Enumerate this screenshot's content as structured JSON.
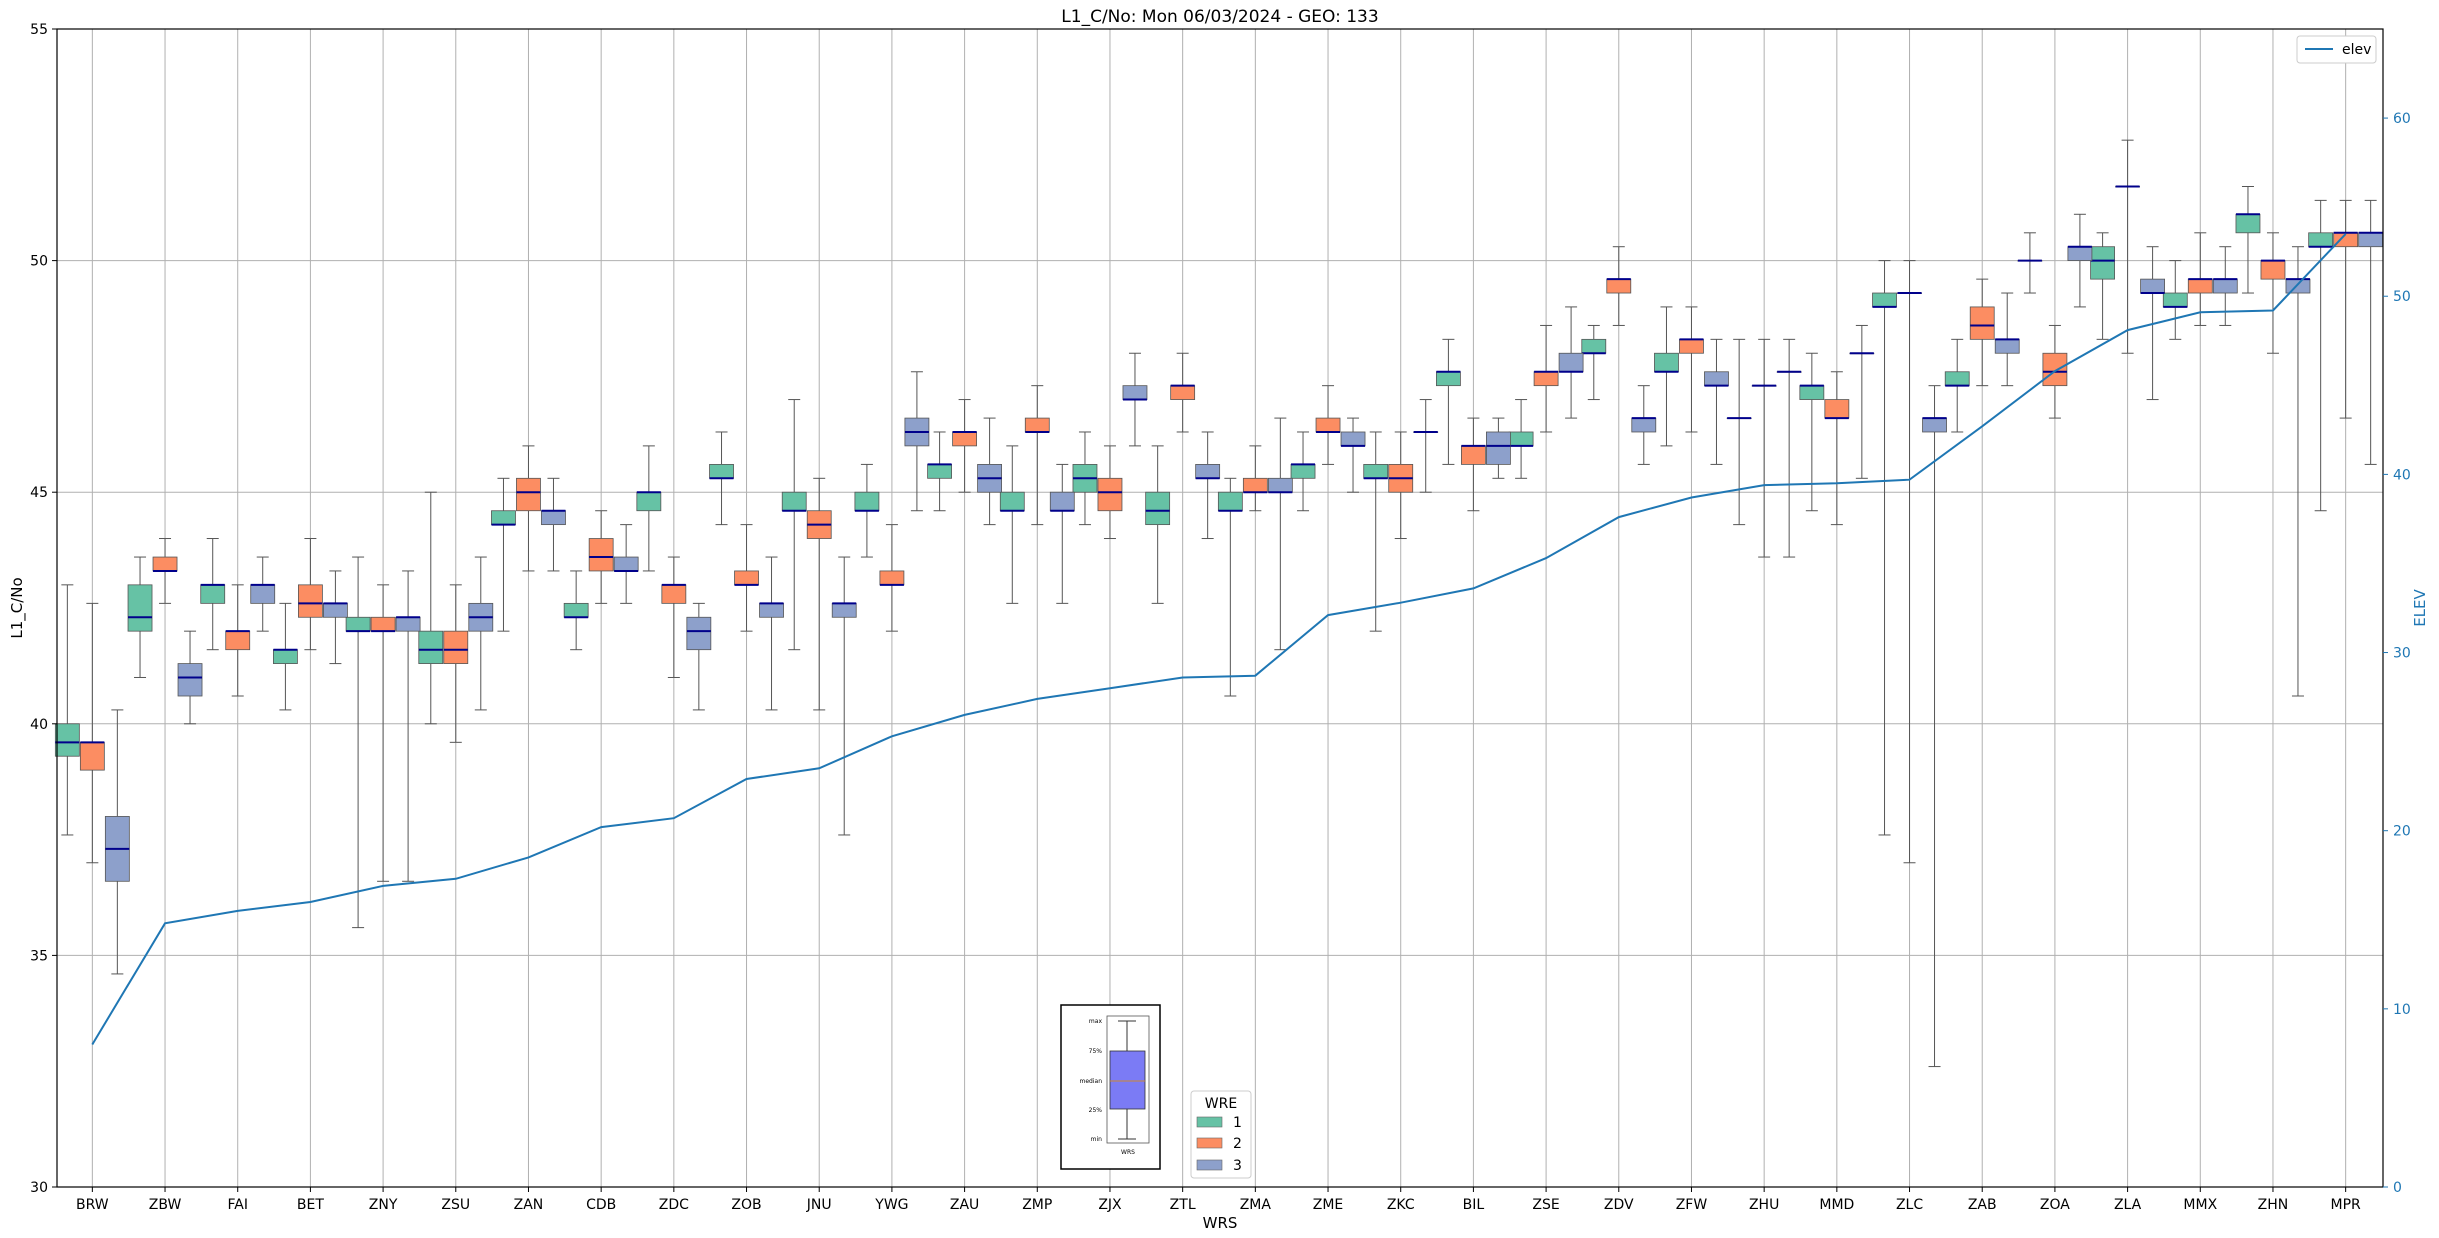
{
  "chart_data": {
    "type": "box",
    "title": "L1_C/No: Mon 06/03/2024 - GEO: 133",
    "xlabel": "WRS",
    "ylabel": "L1_C/No",
    "ylabel_right": "ELEV",
    "ylim": [
      30,
      55
    ],
    "ylim_right": [
      0,
      65
    ],
    "yticks": [
      30,
      35,
      40,
      45,
      50,
      55
    ],
    "yticks_right": [
      0,
      10,
      20,
      30,
      40,
      50,
      60
    ],
    "grid": true,
    "categories": [
      "BRW",
      "ZBW",
      "FAI",
      "BET",
      "ZNY",
      "ZSU",
      "ZAN",
      "CDB",
      "ZDC",
      "ZOB",
      "JNU",
      "YWG",
      "ZAU",
      "ZMP",
      "ZJX",
      "ZTL",
      "ZMA",
      "ZME",
      "ZKC",
      "BIL",
      "ZSE",
      "ZDV",
      "ZFW",
      "ZHU",
      "MMD",
      "ZLC",
      "ZAB",
      "ZOA",
      "ZLA",
      "MMX",
      "ZHN",
      "MPR"
    ],
    "boxes": [
      {
        "group": "1",
        "boxes": [
          [
            37.6,
            39.3,
            39.6,
            40.0,
            43.0
          ],
          [
            41.0,
            42.0,
            42.3,
            43.0,
            43.6
          ],
          [
            41.6,
            42.6,
            43.0,
            43.0,
            44.0
          ],
          [
            40.3,
            41.3,
            41.6,
            41.6,
            42.6
          ],
          [
            35.6,
            42.0,
            42.0,
            42.3,
            43.6
          ],
          [
            40.0,
            41.3,
            41.6,
            42.0,
            45.0
          ],
          [
            42.0,
            44.3,
            44.3,
            44.6,
            45.3
          ],
          [
            41.6,
            42.3,
            42.3,
            42.6,
            43.3
          ],
          [
            43.3,
            44.6,
            45.0,
            45.0,
            46.0
          ],
          [
            44.3,
            45.3,
            45.3,
            45.6,
            46.3
          ],
          [
            41.6,
            44.6,
            44.6,
            45.0,
            47.0
          ],
          [
            43.6,
            44.6,
            44.6,
            45.0,
            45.6
          ],
          [
            44.6,
            45.3,
            45.6,
            45.6,
            46.3
          ],
          [
            42.6,
            44.6,
            44.6,
            45.0,
            46.0
          ],
          [
            44.3,
            45.0,
            45.3,
            45.6,
            46.3
          ],
          [
            42.6,
            44.3,
            44.6,
            45.0,
            46.0
          ],
          [
            40.6,
            44.6,
            44.6,
            45.0,
            45.3
          ],
          [
            44.6,
            45.3,
            45.6,
            45.6,
            46.3
          ],
          [
            42.0,
            45.3,
            45.3,
            45.6,
            46.3
          ],
          [
            45.6,
            47.3,
            47.6,
            47.6,
            48.3
          ],
          [
            45.3,
            46.0,
            46.0,
            46.3,
            47.0
          ],
          [
            47.0,
            48.0,
            48.0,
            48.3,
            48.6
          ],
          [
            46.0,
            47.6,
            47.6,
            48.0,
            49.0
          ],
          [
            44.3,
            46.6,
            46.6,
            46.6,
            48.3
          ],
          [
            44.6,
            47.0,
            47.3,
            47.3,
            48.0
          ],
          [
            37.6,
            49.0,
            49.0,
            49.3,
            50.0
          ],
          [
            46.3,
            47.3,
            47.3,
            47.6,
            48.3
          ],
          [
            49.3,
            50.0,
            50.0,
            50.0,
            50.6
          ],
          [
            48.3,
            49.6,
            50.0,
            50.3,
            50.6
          ],
          [
            48.3,
            49.0,
            49.0,
            49.3,
            50.0
          ],
          [
            49.3,
            50.6,
            51.0,
            51.0,
            51.6
          ],
          [
            44.6,
            50.3,
            50.3,
            50.6,
            51.3
          ]
        ]
      },
      {
        "group": "2",
        "boxes": [
          [
            37.0,
            39.0,
            39.6,
            39.6,
            42.6
          ],
          [
            42.6,
            43.3,
            43.3,
            43.6,
            44.0
          ],
          [
            40.6,
            41.6,
            42.0,
            42.0,
            43.0
          ],
          [
            41.6,
            42.3,
            42.6,
            43.0,
            44.0
          ],
          [
            36.6,
            42.0,
            42.0,
            42.3,
            43.0
          ],
          [
            39.6,
            41.3,
            41.6,
            42.0,
            43.0
          ],
          [
            43.3,
            44.6,
            45.0,
            45.3,
            46.0
          ],
          [
            42.6,
            43.3,
            43.6,
            44.0,
            44.6
          ],
          [
            41.0,
            42.6,
            43.0,
            43.0,
            43.6
          ],
          [
            42.0,
            43.0,
            43.0,
            43.3,
            44.3
          ],
          [
            40.3,
            44.0,
            44.3,
            44.6,
            45.3
          ],
          [
            42.0,
            43.0,
            43.0,
            43.3,
            44.3
          ],
          [
            45.0,
            46.0,
            46.3,
            46.3,
            47.0
          ],
          [
            44.3,
            46.3,
            46.3,
            46.6,
            47.3
          ],
          [
            44.0,
            44.6,
            45.0,
            45.3,
            46.0
          ],
          [
            46.3,
            47.0,
            47.3,
            47.3,
            48.0
          ],
          [
            44.6,
            45.0,
            45.0,
            45.3,
            46.0
          ],
          [
            45.6,
            46.3,
            46.3,
            46.6,
            47.3
          ],
          [
            44.0,
            45.0,
            45.3,
            45.6,
            46.3
          ],
          [
            44.6,
            45.6,
            46.0,
            46.0,
            46.6
          ],
          [
            46.3,
            47.3,
            47.6,
            47.6,
            48.6
          ],
          [
            48.6,
            49.3,
            49.6,
            49.6,
            50.3
          ],
          [
            46.3,
            48.0,
            48.3,
            48.3,
            49.0
          ],
          [
            43.6,
            47.3,
            47.3,
            47.3,
            48.3
          ],
          [
            44.3,
            46.6,
            46.6,
            47.0,
            47.6
          ],
          [
            37.0,
            49.3,
            49.3,
            49.3,
            50.0
          ],
          [
            47.3,
            48.3,
            48.6,
            49.0,
            49.6
          ],
          [
            46.6,
            47.3,
            47.6,
            48.0,
            48.6
          ],
          [
            48.0,
            51.6,
            51.6,
            51.6,
            52.6
          ],
          [
            48.6,
            49.3,
            49.6,
            49.6,
            50.6
          ],
          [
            48.0,
            49.6,
            50.0,
            50.0,
            50.6
          ],
          [
            46.6,
            50.3,
            50.6,
            50.6,
            51.3
          ]
        ]
      },
      {
        "group": "3",
        "boxes": [
          [
            34.6,
            36.6,
            37.3,
            38.0,
            40.3
          ],
          [
            40.0,
            40.6,
            41.0,
            41.3,
            42.0
          ],
          [
            42.0,
            42.6,
            43.0,
            43.0,
            43.6
          ],
          [
            41.3,
            42.3,
            42.6,
            42.6,
            43.3
          ],
          [
            36.6,
            42.0,
            42.3,
            42.3,
            43.3
          ],
          [
            40.3,
            42.0,
            42.3,
            42.6,
            43.6
          ],
          [
            43.3,
            44.3,
            44.6,
            44.6,
            45.3
          ],
          [
            42.6,
            43.3,
            43.3,
            43.6,
            44.3
          ],
          [
            40.3,
            41.6,
            42.0,
            42.3,
            42.6
          ],
          [
            40.3,
            42.3,
            42.6,
            42.6,
            43.6
          ],
          [
            37.6,
            42.3,
            42.6,
            42.6,
            43.6
          ],
          [
            44.6,
            46.0,
            46.3,
            46.6,
            47.6
          ],
          [
            44.3,
            45.0,
            45.3,
            45.6,
            46.6
          ],
          [
            42.6,
            44.6,
            44.6,
            45.0,
            45.6
          ],
          [
            46.0,
            47.0,
            47.0,
            47.3,
            48.0
          ],
          [
            44.0,
            45.3,
            45.3,
            45.6,
            46.3
          ],
          [
            41.6,
            45.0,
            45.0,
            45.3,
            46.6
          ],
          [
            45.0,
            46.0,
            46.0,
            46.3,
            46.6
          ],
          [
            45.0,
            46.3,
            46.3,
            46.3,
            47.0
          ],
          [
            45.3,
            45.6,
            46.0,
            46.3,
            46.6
          ],
          [
            46.6,
            47.6,
            47.6,
            48.0,
            49.0
          ],
          [
            45.6,
            46.3,
            46.6,
            46.6,
            47.3
          ],
          [
            45.6,
            47.3,
            47.3,
            47.6,
            48.3
          ],
          [
            43.6,
            47.6,
            47.6,
            47.6,
            48.3
          ],
          [
            45.3,
            48.0,
            48.0,
            48.0,
            48.6
          ],
          [
            32.6,
            46.3,
            46.6,
            46.6,
            47.3
          ],
          [
            47.3,
            48.0,
            48.3,
            48.3,
            49.3
          ],
          [
            49.0,
            50.0,
            50.3,
            50.3,
            51.0
          ],
          [
            47.0,
            49.3,
            49.3,
            49.6,
            50.3
          ],
          [
            48.6,
            49.3,
            49.6,
            49.6,
            50.3
          ],
          [
            40.6,
            49.3,
            49.6,
            49.6,
            50.3
          ],
          [
            45.6,
            50.3,
            50.6,
            50.6,
            51.3
          ]
        ]
      }
    ],
    "elev": [
      8,
      14.8,
      15.5,
      16,
      16.9,
      17.3,
      18.5,
      20.2,
      20.7,
      22.9,
      23.5,
      25.3,
      26.5,
      27.4,
      28,
      28.6,
      28.7,
      32.1,
      32.8,
      33.6,
      35.3,
      37.6,
      38.7,
      39.4,
      39.5,
      39.7,
      42.7,
      45.8,
      48.1,
      49.1,
      49.2,
      53.5
    ],
    "legend_box": {
      "title": "WRE",
      "entries": [
        "1",
        "2",
        "3"
      ]
    },
    "legend_line": {
      "label": "elev"
    },
    "inset_key": {
      "labels": [
        "max",
        "75%",
        "median",
        "25%",
        "min"
      ],
      "xlabel": "WRS"
    },
    "colors": {
      "1": "#66c2a5",
      "2": "#fc8d62",
      "3": "#8da0cb",
      "elev": "#1f77b4",
      "median": "#00008b",
      "inset_box": "#7b7bf5"
    }
  }
}
